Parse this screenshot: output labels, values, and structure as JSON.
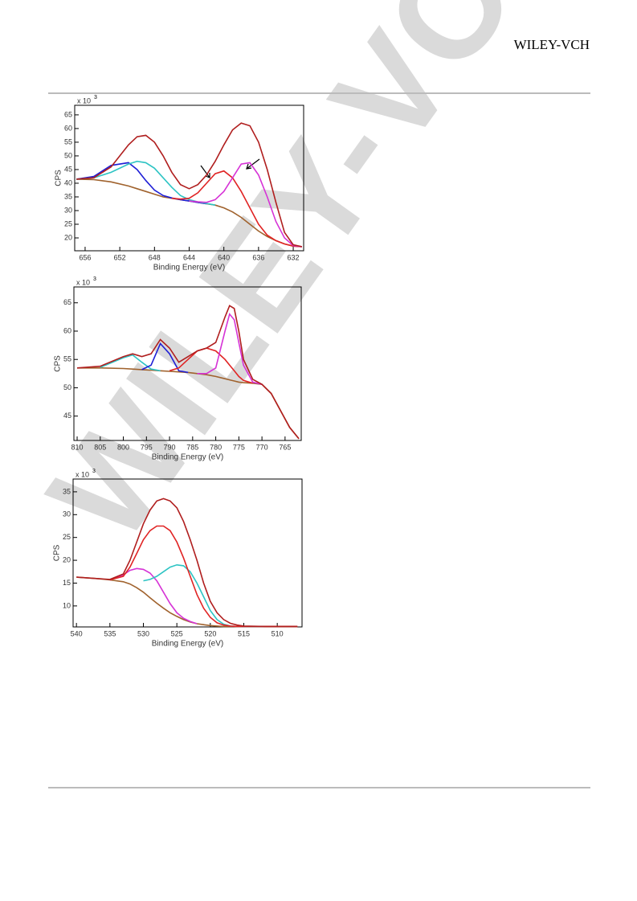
{
  "header": {
    "logo": "WILEY-VCH"
  },
  "watermark": "WILEY-VCH",
  "chart_data": [
    {
      "type": "line",
      "x_label": "Binding Energy (eV)",
      "y_label": "CPS",
      "y_scale": {
        "base": "x 10",
        "exponent": "3"
      },
      "xlim": [
        657.2,
        630.8
      ],
      "ylim": [
        15.3,
        68.5
      ],
      "xticks": [
        656,
        652,
        648,
        644,
        640,
        636,
        632
      ],
      "yticks": [
        20,
        25,
        30,
        35,
        40,
        45,
        50,
        55,
        60,
        65
      ],
      "x": [
        657,
        655,
        653,
        651,
        650,
        649,
        648,
        647,
        646,
        645,
        644,
        643,
        642,
        641,
        640,
        639,
        638,
        637,
        636,
        635,
        634,
        633,
        632,
        631
      ],
      "series": [
        {
          "color": "#a0622d",
          "values": [
            41.5,
            41.3,
            40.5,
            39,
            38,
            37,
            36,
            35,
            34.5,
            34,
            33.5,
            33,
            32.5,
            32,
            31,
            29.5,
            27.5,
            25,
            22.5,
            20.5,
            19,
            17.8,
            17,
            16.8
          ]
        },
        {
          "color": "#1f1fd6",
          "values": [
            41.5,
            42.5,
            46.5,
            47.5,
            45,
            41,
            37.5,
            35.5,
            34.6,
            34,
            33.5,
            33,
            32.5,
            null,
            null,
            null,
            null,
            null,
            null,
            null,
            null,
            null,
            null,
            null
          ]
        },
        {
          "color": "#2ec4c4",
          "values": [
            41.5,
            42,
            44,
            47,
            48,
            47.5,
            45.5,
            42,
            38.5,
            35.5,
            34,
            33.2,
            32.6,
            32,
            null,
            null,
            null,
            null,
            null,
            null,
            null,
            null,
            null,
            null
          ]
        },
        {
          "color": "#e02424",
          "values": [
            null,
            null,
            null,
            null,
            null,
            null,
            null,
            null,
            34.5,
            34.2,
            34.5,
            36.5,
            40,
            43.5,
            44.5,
            42,
            37,
            31,
            25,
            21,
            19,
            17.8,
            17,
            16.8
          ]
        },
        {
          "color": "#d633d6",
          "values": [
            null,
            null,
            null,
            null,
            null,
            null,
            null,
            null,
            null,
            null,
            33.5,
            33.2,
            33,
            34,
            37,
            42,
            47,
            47.5,
            43,
            35,
            26,
            20,
            17.2,
            16.8
          ]
        },
        {
          "color": "#b01e1e",
          "values": [
            41.5,
            42,
            46,
            54,
            57,
            57.5,
            55,
            50,
            44,
            39.5,
            38,
            39.5,
            43,
            48,
            54,
            59.5,
            62,
            61,
            55,
            45,
            33,
            22,
            17.5,
            16.8
          ]
        }
      ]
    },
    {
      "type": "line",
      "x_label": "Binding Energy (eV)",
      "y_label": "CPS",
      "y_scale": {
        "base": "x 10",
        "exponent": "3"
      },
      "xlim": [
        810.7,
        761.5
      ],
      "ylim": [
        40.7,
        67.8
      ],
      "xticks": [
        810,
        805,
        800,
        795,
        790,
        785,
        780,
        775,
        770,
        765
      ],
      "yticks": [
        45,
        50,
        55,
        60,
        65
      ],
      "x": [
        810,
        805,
        800,
        798,
        796,
        794,
        792,
        790,
        788,
        786,
        784,
        782,
        780,
        778,
        777,
        776,
        775,
        774,
        772,
        770,
        768,
        766,
        764,
        762
      ],
      "series": [
        {
          "color": "#a0622d",
          "values": [
            53.5,
            53.5,
            53.4,
            53.3,
            53.2,
            53.1,
            53,
            52.9,
            52.8,
            52.7,
            52.5,
            52.3,
            52,
            51.6,
            51.4,
            51.2,
            51,
            50.9,
            50.8,
            50.6,
            49,
            46,
            43,
            41
          ]
        },
        {
          "color": "#2ec4c4",
          "values": [
            null,
            53.6,
            55.3,
            55.8,
            54.5,
            53.3,
            53,
            null,
            null,
            null,
            null,
            null,
            null,
            null,
            null,
            null,
            null,
            null,
            null,
            null,
            null,
            null,
            null,
            null
          ]
        },
        {
          "color": "#1f1fd6",
          "values": [
            null,
            null,
            null,
            null,
            53.2,
            54,
            57.8,
            56,
            53,
            52.7,
            null,
            null,
            null,
            null,
            null,
            null,
            null,
            null,
            null,
            null,
            null,
            null,
            null,
            null
          ]
        },
        {
          "color": "#e02424",
          "values": [
            null,
            null,
            null,
            null,
            null,
            null,
            null,
            53,
            53.5,
            55,
            56.5,
            57,
            56.5,
            55,
            54,
            53,
            52,
            51.3,
            50.8,
            null,
            null,
            null,
            null,
            null
          ]
        },
        {
          "color": "#d633d6",
          "values": [
            null,
            null,
            null,
            null,
            null,
            null,
            null,
            null,
            null,
            null,
            52.5,
            52.5,
            53.5,
            60,
            63,
            62,
            58,
            54,
            51,
            50.6,
            null,
            null,
            null,
            null
          ]
        },
        {
          "color": "#b01e1e",
          "values": [
            53.5,
            53.8,
            55.5,
            56,
            55.5,
            56,
            58.5,
            57,
            54.5,
            55.5,
            56.5,
            57,
            58,
            62.5,
            64.5,
            64,
            60,
            55,
            51.5,
            50.6,
            49,
            46,
            43,
            41
          ]
        }
      ]
    },
    {
      "type": "line",
      "x_label": "Binding Energy (eV)",
      "y_label": "CPS",
      "y_scale": {
        "base": "x 10",
        "exponent": "3"
      },
      "xlim": [
        540.5,
        506.3
      ],
      "ylim": [
        5.4,
        37.8
      ],
      "xticks": [
        540,
        535,
        530,
        525,
        520,
        515,
        510
      ],
      "yticks": [
        10,
        15,
        20,
        25,
        30,
        35
      ],
      "x": [
        540,
        537,
        535,
        533,
        532,
        531,
        530,
        529,
        528,
        527,
        526,
        525,
        524,
        523,
        522,
        521,
        520,
        519,
        518,
        517,
        516,
        515,
        512,
        507
      ],
      "series": [
        {
          "color": "#a0622d",
          "values": [
            16.3,
            16,
            15.7,
            15.3,
            14.8,
            14,
            13,
            11.8,
            10.6,
            9.5,
            8.5,
            7.7,
            7,
            6.5,
            6.1,
            5.9,
            5.7,
            5.6,
            5.5,
            5.5,
            5.5,
            5.5,
            5.5,
            5.5
          ]
        },
        {
          "color": "#d633d6",
          "values": [
            null,
            null,
            15.7,
            16.8,
            17.8,
            18.2,
            18,
            17.2,
            15.5,
            13,
            10.5,
            8.5,
            7.3,
            6.6,
            6.1,
            null,
            null,
            null,
            null,
            null,
            null,
            null,
            null,
            null
          ]
        },
        {
          "color": "#2ec4c4",
          "values": [
            null,
            null,
            null,
            null,
            null,
            null,
            15.5,
            15.8,
            16.5,
            17.5,
            18.5,
            19,
            18.8,
            17.5,
            15,
            12,
            9,
            7,
            6,
            5.6,
            5.5,
            5.5,
            5.5,
            null
          ]
        },
        {
          "color": "#e02424",
          "values": [
            null,
            null,
            15.7,
            16.5,
            18.5,
            21.5,
            24.5,
            26.5,
            27.5,
            27.5,
            26.5,
            24,
            20.5,
            16.5,
            12.5,
            9.5,
            7.5,
            6.3,
            5.8,
            5.6,
            5.5,
            5.5,
            5.5,
            5.5
          ]
        },
        {
          "color": "#b01e1e",
          "values": [
            16.3,
            16,
            15.8,
            17,
            20,
            24,
            28,
            31,
            33,
            33.5,
            33,
            31.5,
            28.5,
            24.5,
            20,
            15,
            11,
            8.5,
            7,
            6.2,
            5.8,
            5.6,
            5.5,
            5.5
          ]
        }
      ]
    }
  ]
}
